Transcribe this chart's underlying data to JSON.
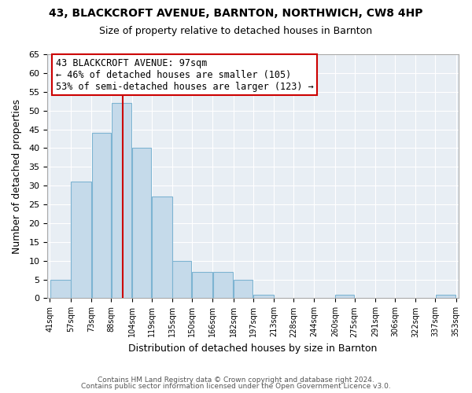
{
  "title": "43, BLACKCROFT AVENUE, BARNTON, NORTHWICH, CW8 4HP",
  "subtitle": "Size of property relative to detached houses in Barnton",
  "xlabel": "Distribution of detached houses by size in Barnton",
  "ylabel": "Number of detached properties",
  "bar_left_edges": [
    41,
    57,
    73,
    88,
    104,
    119,
    135,
    150,
    166,
    182,
    197,
    213,
    228,
    244,
    260,
    275,
    291,
    306,
    322,
    337
  ],
  "bar_widths": [
    16,
    16,
    15,
    16,
    15,
    16,
    15,
    16,
    16,
    15,
    16,
    15,
    16,
    16,
    15,
    16,
    15,
    16,
    15,
    16
  ],
  "bar_heights": [
    5,
    31,
    44,
    52,
    40,
    27,
    10,
    7,
    7,
    5,
    1,
    0,
    0,
    0,
    1,
    0,
    0,
    0,
    0,
    1
  ],
  "bar_color": "#c5daea",
  "bar_edge_color": "#7db4d2",
  "tick_labels": [
    "41sqm",
    "57sqm",
    "73sqm",
    "88sqm",
    "104sqm",
    "119sqm",
    "135sqm",
    "150sqm",
    "166sqm",
    "182sqm",
    "197sqm",
    "213sqm",
    "228sqm",
    "244sqm",
    "260sqm",
    "275sqm",
    "291sqm",
    "306sqm",
    "322sqm",
    "337sqm",
    "353sqm"
  ],
  "ylim": [
    0,
    65
  ],
  "yticks": [
    0,
    5,
    10,
    15,
    20,
    25,
    30,
    35,
    40,
    45,
    50,
    55,
    60,
    65
  ],
  "vline_x": 97,
  "vline_color": "#cc0000",
  "annotation_title": "43 BLACKCROFT AVENUE: 97sqm",
  "annotation_line1": "← 46% of detached houses are smaller (105)",
  "annotation_line2": "53% of semi-detached houses are larger (123) →",
  "annotation_box_color": "#ffffff",
  "annotation_box_edge_color": "#cc0000",
  "footer1": "Contains HM Land Registry data © Crown copyright and database right 2024.",
  "footer2": "Contains public sector information licensed under the Open Government Licence v3.0.",
  "bg_color": "#ffffff",
  "plot_bg_color": "#e8eef4",
  "grid_color": "#ffffff",
  "spine_color": "#aaaaaa"
}
